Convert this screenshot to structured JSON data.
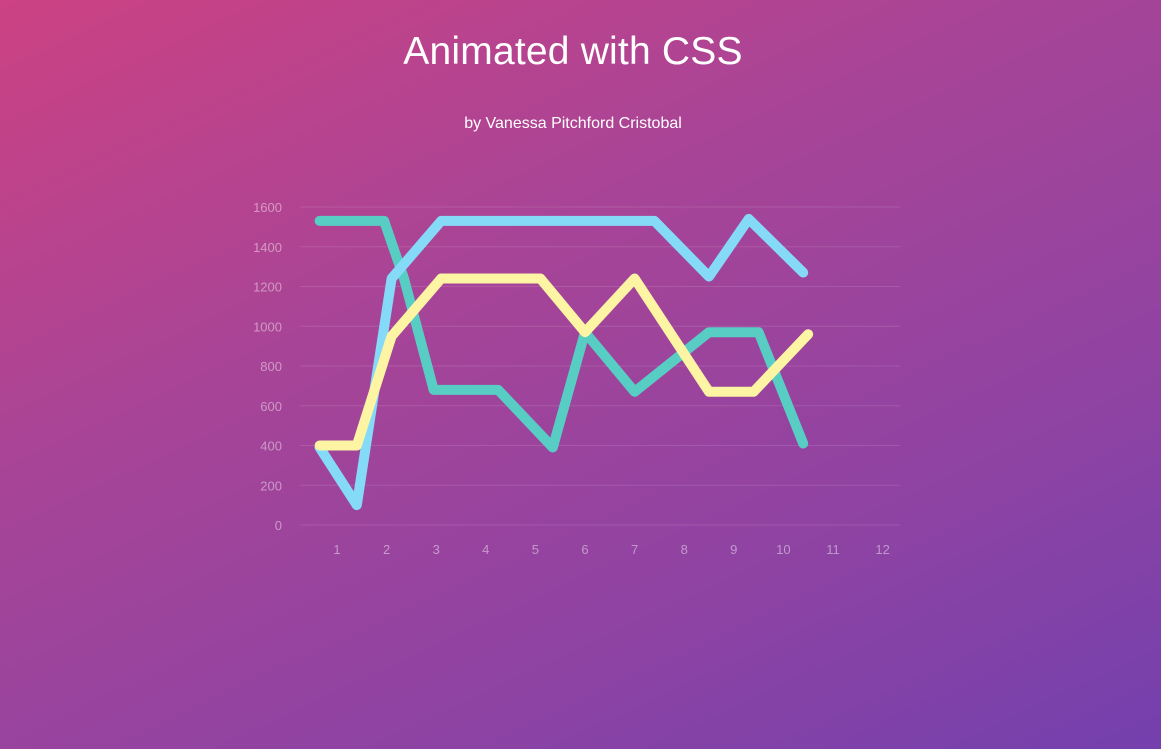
{
  "page": {
    "title": "Animated with CSS",
    "subtitle": "by Vanessa Pitchford Cristobal"
  },
  "chart_data": {
    "type": "line",
    "title": "",
    "xlabel": "",
    "ylabel": "",
    "x": [
      1,
      2,
      3,
      4,
      5,
      6,
      7,
      8,
      9,
      10,
      11,
      12
    ],
    "x_tick_labels": [
      "1",
      "2",
      "3",
      "4",
      "5",
      "6",
      "7",
      "8",
      "9",
      "10",
      "11",
      "12"
    ],
    "y_ticks": [
      0,
      200,
      400,
      600,
      800,
      1000,
      1200,
      1400,
      1600
    ],
    "ylim": [
      0,
      1600
    ],
    "grid": true,
    "legend": "none",
    "series": [
      {
        "color": "#58cdc4",
        "points": [
          [
            0.65,
            1530
          ],
          [
            1.4,
            1530
          ],
          [
            1.95,
            1530
          ],
          [
            2.35,
            1240
          ],
          [
            2.95,
            680
          ],
          [
            4.25,
            680
          ],
          [
            5.35,
            390
          ],
          [
            6.0,
            970
          ],
          [
            7.0,
            670
          ],
          [
            8.5,
            970
          ],
          [
            9.5,
            970
          ],
          [
            10.4,
            410
          ]
        ]
      },
      {
        "color": "#85daf7",
        "points": [
          [
            0.65,
            390
          ],
          [
            1.4,
            100
          ],
          [
            2.1,
            1240
          ],
          [
            3.1,
            1530
          ],
          [
            7.4,
            1530
          ],
          [
            8.5,
            1250
          ],
          [
            9.3,
            1540
          ],
          [
            10.4,
            1270
          ]
        ]
      },
      {
        "color": "#fdf4a4",
        "points": [
          [
            0.65,
            400
          ],
          [
            1.4,
            400
          ],
          [
            2.1,
            950
          ],
          [
            3.1,
            1240
          ],
          [
            5.1,
            1240
          ],
          [
            6.0,
            970
          ],
          [
            7.0,
            1240
          ],
          [
            8.5,
            670
          ],
          [
            9.4,
            670
          ],
          [
            10.5,
            960
          ]
        ]
      }
    ]
  }
}
